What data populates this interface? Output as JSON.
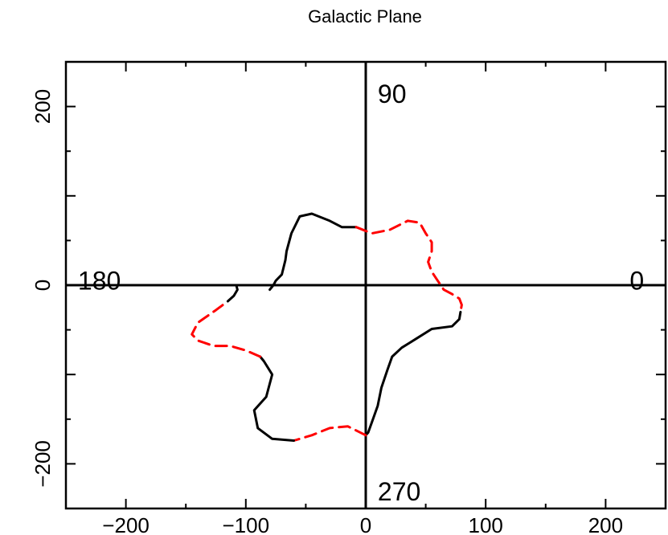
{
  "chart_data": {
    "type": "line",
    "title": "Galactic Plane",
    "xlabel": "",
    "ylabel": "",
    "xlim": [
      -250,
      250
    ],
    "ylim": [
      -250,
      250
    ],
    "xticks": [
      -200,
      -100,
      0,
      100,
      200
    ],
    "xtick_labels": [
      "−200",
      "−100",
      "0",
      "100",
      "200"
    ],
    "yticks": [
      -200,
      0,
      200
    ],
    "ytick_labels": [
      "−200",
      "0",
      "200"
    ],
    "grid": false,
    "quadrant_labels": [
      {
        "text": "90",
        "x": 10,
        "y": 215
      },
      {
        "text": "180",
        "x": -240,
        "y": 6
      },
      {
        "text": "0",
        "x": 232,
        "y": 6
      },
      {
        "text": "270",
        "x": 10,
        "y": -230
      }
    ],
    "series": [
      {
        "style": "solid",
        "color": "#000000",
        "points": [
          [
            -8,
            65
          ],
          [
            -20,
            65
          ],
          [
            -30,
            72
          ],
          [
            -45,
            80
          ],
          [
            -55,
            77
          ],
          [
            -62,
            58
          ],
          [
            -66,
            38
          ],
          [
            -67,
            28
          ],
          [
            -70,
            12
          ],
          [
            -75,
            5
          ],
          [
            -77,
            0
          ],
          [
            -80,
            -5
          ]
        ]
      },
      {
        "style": "dashed",
        "color": "#ff0000",
        "points": [
          [
            -8,
            65
          ],
          [
            5,
            58
          ],
          [
            20,
            62
          ],
          [
            35,
            72
          ],
          [
            45,
            70
          ],
          [
            50,
            58
          ],
          [
            55,
            48
          ],
          [
            55,
            38
          ],
          [
            52,
            26
          ],
          [
            55,
            15
          ],
          [
            60,
            5
          ],
          [
            65,
            -5
          ],
          [
            72,
            -10
          ],
          [
            78,
            -15
          ],
          [
            80,
            -22
          ],
          [
            79,
            -30
          ]
        ]
      },
      {
        "style": "solid",
        "color": "#000000",
        "points": [
          [
            79,
            -30
          ],
          [
            78,
            -38
          ],
          [
            72,
            -46
          ],
          [
            55,
            -49
          ],
          [
            42,
            -60
          ],
          [
            30,
            -70
          ],
          [
            22,
            -80
          ],
          [
            18,
            -95
          ],
          [
            13,
            -115
          ],
          [
            10,
            -135
          ],
          [
            6,
            -150
          ],
          [
            2,
            -165
          ],
          [
            0,
            -168
          ]
        ]
      },
      {
        "style": "dashed",
        "color": "#ff0000",
        "points": [
          [
            0,
            -168
          ],
          [
            -15,
            -158
          ],
          [
            -30,
            -160
          ],
          [
            -45,
            -168
          ],
          [
            -60,
            -174
          ]
        ]
      },
      {
        "style": "solid",
        "color": "#000000",
        "points": [
          [
            -60,
            -174
          ],
          [
            -78,
            -172
          ],
          [
            -90,
            -160
          ],
          [
            -93,
            -140
          ],
          [
            -83,
            -125
          ],
          [
            -78,
            -100
          ],
          [
            -85,
            -85
          ],
          [
            -88,
            -80
          ]
        ]
      },
      {
        "style": "dashed",
        "color": "#ff0000",
        "points": [
          [
            -88,
            -80
          ],
          [
            -100,
            -73
          ],
          [
            -113,
            -68
          ],
          [
            -127,
            -68
          ],
          [
            -140,
            -62
          ],
          [
            -145,
            -55
          ],
          [
            -140,
            -42
          ],
          [
            -125,
            -28
          ],
          [
            -115,
            -18
          ]
        ]
      },
      {
        "style": "solid",
        "color": "#000000",
        "points": [
          [
            -115,
            -18
          ],
          [
            -110,
            -12
          ],
          [
            -107,
            -5
          ],
          [
            -108,
            0
          ]
        ]
      }
    ]
  }
}
